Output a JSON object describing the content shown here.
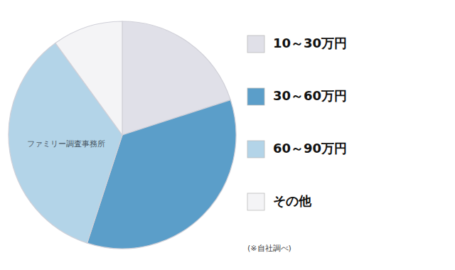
{
  "chart_data": {
    "type": "pie",
    "categories": [
      "10～30万円",
      "30～60万円",
      "60～90万円",
      "その他"
    ],
    "values": [
      20,
      35,
      35,
      10
    ],
    "colors": [
      "#e0e0e8",
      "#5b9ec9",
      "#b3d4e8",
      "#f4f4f6"
    ],
    "legend": "right",
    "annotations": [
      "ファミリー調査事務所",
      "(※自社調べ)"
    ]
  }
}
